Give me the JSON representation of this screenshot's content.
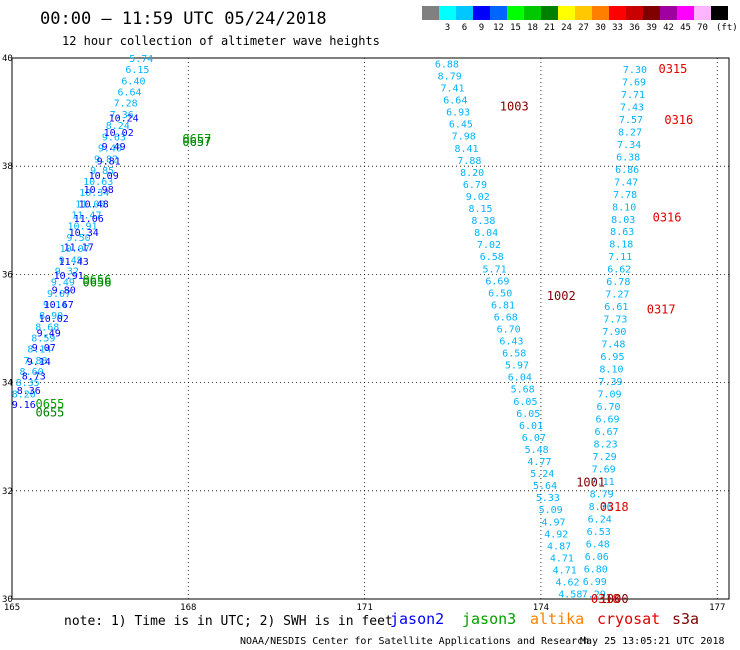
{
  "title": "00:00 – 11:59 UTC 05/24/2018",
  "subtitle": "12 hour collection of altimeter wave heights",
  "color_scale": {
    "colors": [
      "#808080",
      "#00ffff",
      "#00c8ff",
      "#0000ff",
      "#0064ff",
      "#00ff00",
      "#00c800",
      "#008000",
      "#ffff00",
      "#ffc800",
      "#ff8000",
      "#ff0000",
      "#c80000",
      "#800000",
      "#a000a0",
      "#ff00ff",
      "#ffb4ff",
      "#000000"
    ],
    "labels": [
      "3",
      "6",
      "9",
      "12",
      "15",
      "18",
      "21",
      "24",
      "27",
      "30",
      "33",
      "36",
      "39",
      "42",
      "45",
      "70"
    ],
    "unit": "(ft)"
  },
  "note": "note: 1) Time is in UTC; 2) SWH is in feet",
  "legend": [
    {
      "name": "jason2",
      "color": "#0000ff"
    },
    {
      "name": "jason3",
      "color": "#00a000"
    },
    {
      "name": "altika",
      "color": "#ff8000"
    },
    {
      "name": "cryosat",
      "color": "#e00000"
    },
    {
      "name": "s3a",
      "color": "#800000"
    }
  ],
  "credit": "NOAA/NESDIS Center for Satellite Applications and Research",
  "timestamp": "May 25 13:05:21 UTC 2018",
  "chart_data": {
    "type": "scatter",
    "xlim": [
      165,
      177.2
    ],
    "ylim": [
      30,
      40
    ],
    "x_ticks": [
      "165",
      "168",
      "171",
      "174",
      "177"
    ],
    "y_ticks": [
      "30",
      "32",
      "34",
      "36",
      "38",
      "40"
    ],
    "grid": true,
    "groups": [
      {
        "track": "left-lightblue",
        "color": "#00b4ff",
        "start": [
          167.2,
          40.0
        ],
        "end": [
          165.2,
          33.8
        ],
        "values": [
          "5.74",
          "6.15",
          "6.40",
          "6.64",
          "7.28",
          "7.36",
          "8.24",
          "9.63",
          "9.40",
          "9.82",
          "9.85",
          "10.63",
          "10.34",
          "11.00",
          "11.47",
          "10.91",
          "9.50",
          "10.07",
          "9.49",
          "9.32",
          "9.49",
          "9.07",
          "9.14",
          "8.90",
          "8.68",
          "8.59",
          "8.14",
          "7.88",
          "8.60",
          "8.35",
          "8.20"
        ]
      },
      {
        "track": "left-blue",
        "color": "#0000ff",
        "start": [
          166.9,
          38.9
        ],
        "end": [
          165.2,
          33.6
        ],
        "values": [
          "10.24",
          "10.02",
          "9.49",
          "9.81",
          "10.09",
          "10.98",
          "10.48",
          "11.06",
          "10.34",
          "11.17",
          "11.43",
          "10.91",
          "9.80",
          "10.67",
          "10.02",
          "9.49",
          "9.07",
          "9.14",
          "8.73",
          "8.36",
          "9.16"
        ]
      },
      {
        "track": "mid-lightblue",
        "color": "#00b4ff",
        "start": [
          172.4,
          39.9
        ],
        "end": [
          174.5,
          30.1
        ],
        "values": [
          "6.88",
          "8.79",
          "7.41",
          "6.64",
          "6.93",
          "6.45",
          "7.98",
          "8.41",
          "7.88",
          "8.20",
          "6.79",
          "9.02",
          "8.15",
          "8.38",
          "8.04",
          "7.02",
          "6.58",
          "5.71",
          "6.69",
          "6.50",
          "6.81",
          "6.68",
          "6.70",
          "6.43",
          "6.58",
          "5.97",
          "6.04",
          "5.68",
          "6.05",
          "6.05",
          "6.01",
          "6.07",
          "5.48",
          "4.77",
          "5.24",
          "5.64",
          "5.33",
          "5.09",
          "4.97",
          "4.92",
          "4.87",
          "4.71",
          "4.71",
          "4.62",
          "4.58"
        ]
      },
      {
        "track": "right-lightblue",
        "color": "#00b4ff",
        "start": [
          175.6,
          39.8
        ],
        "end": [
          174.9,
          30.1
        ],
        "values": [
          "7.30",
          "7.69",
          "7.71",
          "7.43",
          "7.57",
          "8.27",
          "7.34",
          "6.38",
          "6.86",
          "7.47",
          "7.78",
          "8.10",
          "8.03",
          "8.63",
          "8.18",
          "7.11",
          "6.62",
          "6.78",
          "7.27",
          "6.61",
          "7.73",
          "7.90",
          "7.48",
          "6.95",
          "8.10",
          "7.39",
          "7.09",
          "6.70",
          "6.69",
          "6.67",
          "8.23",
          "7.29",
          "7.69",
          "7.11",
          "8.79",
          "8.76",
          "6.24",
          "6.53",
          "6.48",
          "6.06",
          "6.80",
          "6.99",
          "7.29"
        ]
      }
    ],
    "time_labels": [
      {
        "text": "0657",
        "x": 167.9,
        "y": 38.5,
        "color": "#00a000"
      },
      {
        "text": "0657",
        "x": 167.9,
        "y": 38.45,
        "color": "#008000"
      },
      {
        "text": "0656",
        "x": 166.2,
        "y": 35.9,
        "color": "#00a000"
      },
      {
        "text": "0656",
        "x": 166.2,
        "y": 35.85,
        "color": "#008000"
      },
      {
        "text": "0655",
        "x": 165.4,
        "y": 33.6,
        "color": "#00a000"
      },
      {
        "text": "0655",
        "x": 165.4,
        "y": 33.45,
        "color": "#008000"
      },
      {
        "text": "1003",
        "x": 173.3,
        "y": 39.1,
        "color": "#800000"
      },
      {
        "text": "1002",
        "x": 174.1,
        "y": 35.6,
        "color": "#800000"
      },
      {
        "text": "1001",
        "x": 174.6,
        "y": 32.15,
        "color": "#800000"
      },
      {
        "text": "1000",
        "x": 175.0,
        "y": 30.0,
        "color": "#800000"
      },
      {
        "text": "0315",
        "x": 176.0,
        "y": 39.8,
        "color": "#e00000"
      },
      {
        "text": "0316",
        "x": 176.1,
        "y": 38.85,
        "color": "#e00000"
      },
      {
        "text": "0316",
        "x": 175.9,
        "y": 37.05,
        "color": "#e00000"
      },
      {
        "text": "0317",
        "x": 175.8,
        "y": 35.35,
        "color": "#e00000"
      },
      {
        "text": "0318",
        "x": 175.0,
        "y": 31.7,
        "color": "#e00000"
      },
      {
        "text": "0318",
        "x": 174.85,
        "y": 30.0,
        "color": "#e00000"
      }
    ]
  }
}
